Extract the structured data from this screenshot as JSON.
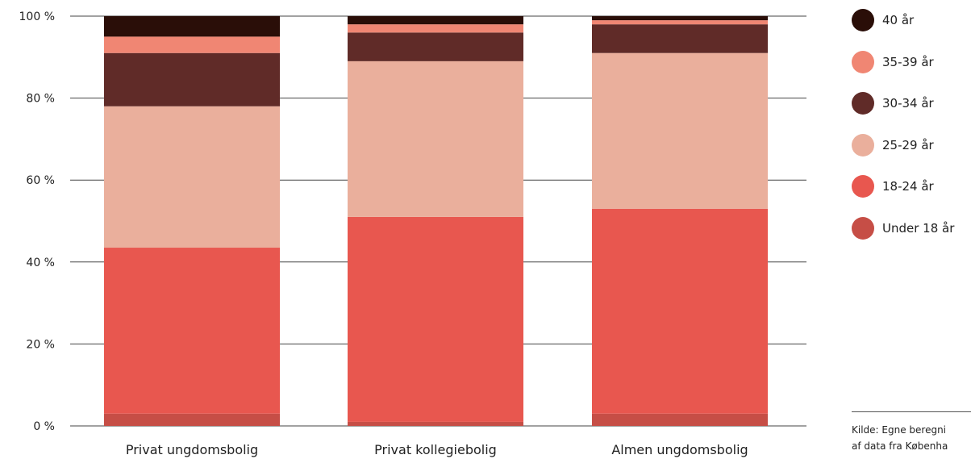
{
  "chart_data": {
    "type": "bar",
    "stacked": true,
    "categories": [
      "Privat ungdomsbolig",
      "Privat kollegiebolig",
      "Almen ungdomsbolig"
    ],
    "ylim": [
      0,
      100
    ],
    "yticks": [
      "0 %",
      "20 %",
      "40 %",
      "60 %",
      "80 %",
      "100 %"
    ],
    "series": [
      {
        "name": "Under 18 år",
        "color": "#c64e46",
        "values": [
          3,
          1,
          3
        ]
      },
      {
        "name": "18-24 år",
        "color": "#e8574f",
        "values": [
          40.5,
          50,
          50
        ]
      },
      {
        "name": "25-29 år",
        "color": "#eaaf9c",
        "values": [
          34.5,
          38,
          38
        ]
      },
      {
        "name": "30-34 år",
        "color": "#602b28",
        "values": [
          13,
          7,
          7
        ]
      },
      {
        "name": "35-39 år",
        "color": "#f08673",
        "values": [
          4,
          2,
          1
        ]
      },
      {
        "name": "40 år",
        "color": "#2a0e08",
        "values": [
          5,
          2,
          1
        ]
      }
    ],
    "legend_position": "right",
    "grid": true
  },
  "source": {
    "line1": "Kilde: Egne beregni",
    "line2": "af data fra Københa"
  }
}
